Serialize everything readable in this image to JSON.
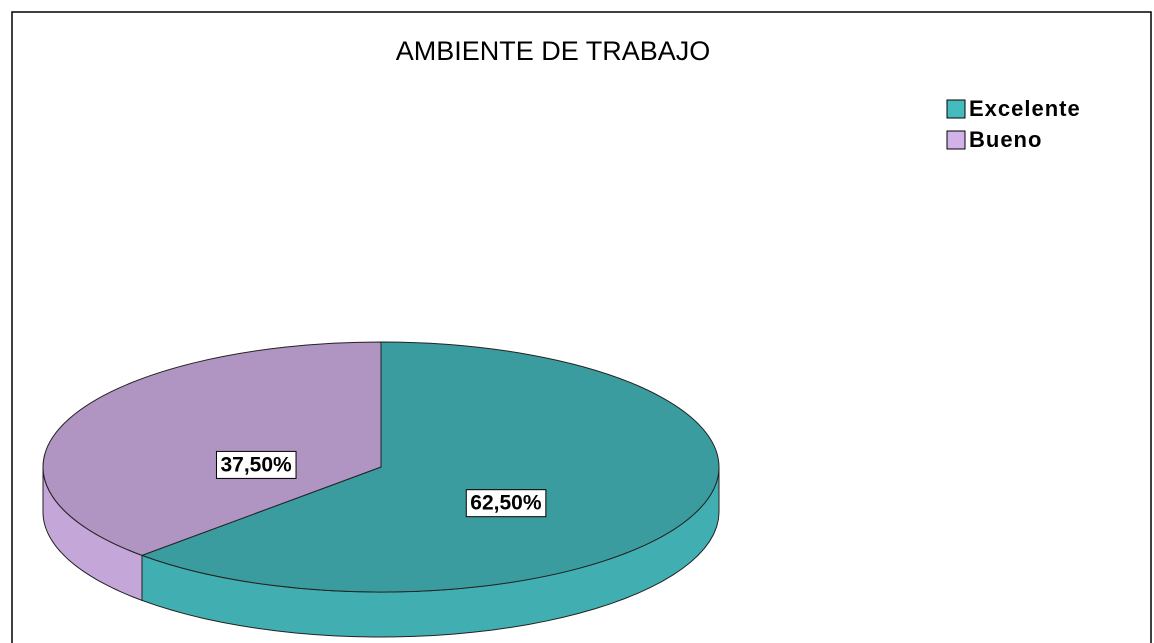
{
  "chart_data": {
    "type": "pie",
    "title": "AMBIENTE DE TRABAJO",
    "categories": [
      "Excelente",
      "Bueno"
    ],
    "values": [
      62.5,
      37.5
    ],
    "value_labels": [
      "62,50%",
      "37,50%"
    ],
    "colors": [
      "#3a9c9f",
      "#b094c2"
    ],
    "legend": "top-right"
  }
}
